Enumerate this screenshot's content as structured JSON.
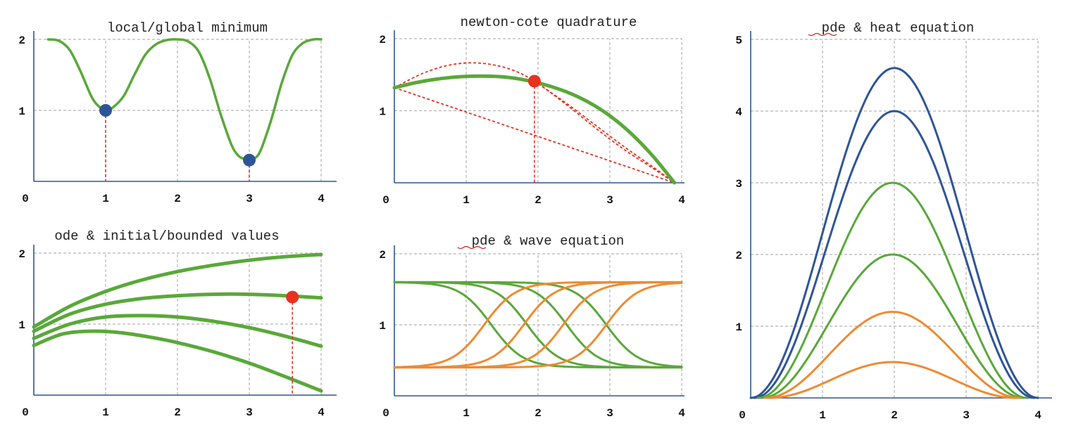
{
  "colors": {
    "green": "#5aa83a",
    "blue": "#2f5597",
    "red": "#e8321e",
    "orange": "#ed8b32",
    "grid": "#b3b3b3"
  },
  "chart_data": [
    {
      "id": "p1",
      "type": "line",
      "title": "local/global minimum",
      "xlim": [
        0,
        4
      ],
      "ylim": [
        0,
        2
      ],
      "x_ticks": [
        "0",
        "1",
        "2",
        "3",
        "4"
      ],
      "y_ticks": [
        "1",
        "2"
      ],
      "series": [
        {
          "color": "green",
          "width": 3.5,
          "x": [
            0.2,
            0.35,
            0.5,
            0.65,
            0.8,
            0.9,
            1.0,
            1.1,
            1.25,
            1.4,
            1.55,
            1.7,
            1.85,
            2.0,
            2.15,
            2.3,
            2.45,
            2.6,
            2.75,
            2.85,
            2.95,
            3.0,
            3.05,
            3.15,
            3.3,
            3.45,
            3.6,
            3.75,
            3.9,
            4.0
          ],
          "y": [
            2.0,
            1.98,
            1.85,
            1.55,
            1.2,
            1.06,
            1.0,
            1.04,
            1.2,
            1.5,
            1.78,
            1.93,
            1.99,
            2.0,
            1.97,
            1.82,
            1.45,
            0.95,
            0.52,
            0.36,
            0.31,
            0.3,
            0.31,
            0.42,
            0.85,
            1.38,
            1.78,
            1.95,
            2.0,
            2.0
          ]
        }
      ],
      "markers": [
        {
          "x": 1.0,
          "y": 1.0,
          "color": "blue",
          "drop": true
        },
        {
          "x": 3.0,
          "y": 0.3,
          "color": "blue",
          "drop": true
        }
      ],
      "dashed": []
    },
    {
      "id": "p2",
      "type": "line",
      "title": "newton-cote quadrature",
      "xlim": [
        0,
        4
      ],
      "ylim": [
        0,
        2
      ],
      "x_ticks": [
        "0",
        "1",
        "2",
        "3",
        "4"
      ],
      "y_ticks": [
        "1",
        "2"
      ],
      "series": [
        {
          "color": "green",
          "width": 5,
          "x": [
            0.0,
            0.3,
            0.6,
            0.9,
            1.2,
            1.5,
            1.8,
            2.1,
            2.4,
            2.7,
            3.0,
            3.3,
            3.6,
            3.9
          ],
          "y": [
            1.32,
            1.39,
            1.44,
            1.47,
            1.48,
            1.47,
            1.43,
            1.36,
            1.26,
            1.12,
            0.93,
            0.68,
            0.37,
            0.0
          ]
        }
      ],
      "markers": [
        {
          "x": 1.95,
          "y": 1.41,
          "color": "red",
          "drop": true
        }
      ],
      "dashed": [
        {
          "x": [
            0.0,
            0.4,
            0.8,
            1.2,
            1.6,
            1.95,
            2.4,
            2.8,
            3.2,
            3.6,
            3.9
          ],
          "y": [
            1.32,
            1.52,
            1.64,
            1.66,
            1.58,
            1.41,
            1.08,
            0.76,
            0.46,
            0.2,
            0.0
          ]
        },
        {
          "x": [
            0.0,
            3.9
          ],
          "y": [
            1.32,
            0.0
          ]
        },
        {
          "x": [
            1.95,
            2.4,
            2.8,
            3.2,
            3.6,
            3.9
          ],
          "y": [
            1.41,
            1.1,
            0.8,
            0.5,
            0.22,
            0.0
          ]
        }
      ]
    },
    {
      "id": "p3",
      "type": "line",
      "title": "pde & heat equation",
      "xlim": [
        0,
        4
      ],
      "ylim": [
        0,
        5
      ],
      "x_ticks": [
        "0",
        "1",
        "2",
        "3",
        "4"
      ],
      "y_ticks": [
        "1",
        "2",
        "3",
        "4",
        "5"
      ],
      "series": [
        {
          "color": "blue",
          "width": 3,
          "peak": 4.6,
          "x0": 0.0,
          "x1": 4.0
        },
        {
          "color": "blue",
          "width": 3,
          "peak": 4.0,
          "x0": 0.05,
          "x1": 3.95
        },
        {
          "color": "green",
          "width": 3,
          "peak": 3.0,
          "x0": 0.1,
          "x1": 3.85
        },
        {
          "color": "green",
          "width": 3,
          "peak": 2.0,
          "x0": 0.15,
          "x1": 3.8
        },
        {
          "color": "orange",
          "width": 3,
          "peak": 1.2,
          "x0": 0.2,
          "x1": 3.75
        },
        {
          "color": "orange",
          "width": 3,
          "peak": 0.5,
          "x0": 0.25,
          "x1": 3.7
        }
      ],
      "markers": [],
      "dashed": []
    },
    {
      "id": "p4",
      "type": "line",
      "title": "ode & initial/bounded values",
      "xlim": [
        0,
        4
      ],
      "ylim": [
        0,
        2
      ],
      "x_ticks": [
        "0",
        "1",
        "2",
        "3",
        "4"
      ],
      "y_ticks": [
        "1",
        "2"
      ],
      "series": [
        {
          "color": "green",
          "width": 5,
          "x": [
            0.0,
            0.5,
            1.0,
            1.5,
            2.0,
            2.5,
            3.0,
            3.5,
            4.0
          ],
          "y": [
            0.96,
            1.25,
            1.46,
            1.62,
            1.74,
            1.83,
            1.9,
            1.95,
            1.98
          ]
        },
        {
          "color": "green",
          "width": 5,
          "x": [
            0.0,
            0.5,
            1.0,
            1.5,
            2.0,
            2.5,
            3.0,
            3.5,
            4.0
          ],
          "y": [
            0.9,
            1.14,
            1.28,
            1.36,
            1.4,
            1.42,
            1.42,
            1.4,
            1.37
          ]
        },
        {
          "color": "green",
          "width": 5,
          "x": [
            0.0,
            0.5,
            1.0,
            1.5,
            2.0,
            2.5,
            3.0,
            3.5,
            4.0
          ],
          "y": [
            0.8,
            1.0,
            1.1,
            1.12,
            1.1,
            1.04,
            0.95,
            0.83,
            0.69
          ]
        },
        {
          "color": "green",
          "width": 5,
          "x": [
            0.0,
            0.4,
            0.8,
            1.2,
            1.6,
            2.0,
            2.5,
            3.0,
            3.5,
            4.0
          ],
          "y": [
            0.7,
            0.86,
            0.9,
            0.88,
            0.82,
            0.74,
            0.61,
            0.45,
            0.26,
            0.06
          ]
        }
      ],
      "markers": [
        {
          "x": 3.6,
          "y": 1.38,
          "color": "red",
          "drop": true
        }
      ],
      "dashed": []
    },
    {
      "id": "p5",
      "type": "line",
      "title": "pde & wave equation",
      "xlim": [
        0,
        4
      ],
      "ylim": [
        0,
        2
      ],
      "x_ticks": [
        "0",
        "1",
        "2",
        "3",
        "4"
      ],
      "y_ticks": [
        "1",
        "2"
      ],
      "wave": {
        "high": 1.6,
        "low": 0.4,
        "green_centers": [
          1.35,
          1.85,
          2.4,
          2.95
        ],
        "orange_centers": [
          1.25,
          1.8,
          2.35,
          2.95
        ]
      },
      "series": [],
      "markers": [],
      "dashed": []
    }
  ]
}
